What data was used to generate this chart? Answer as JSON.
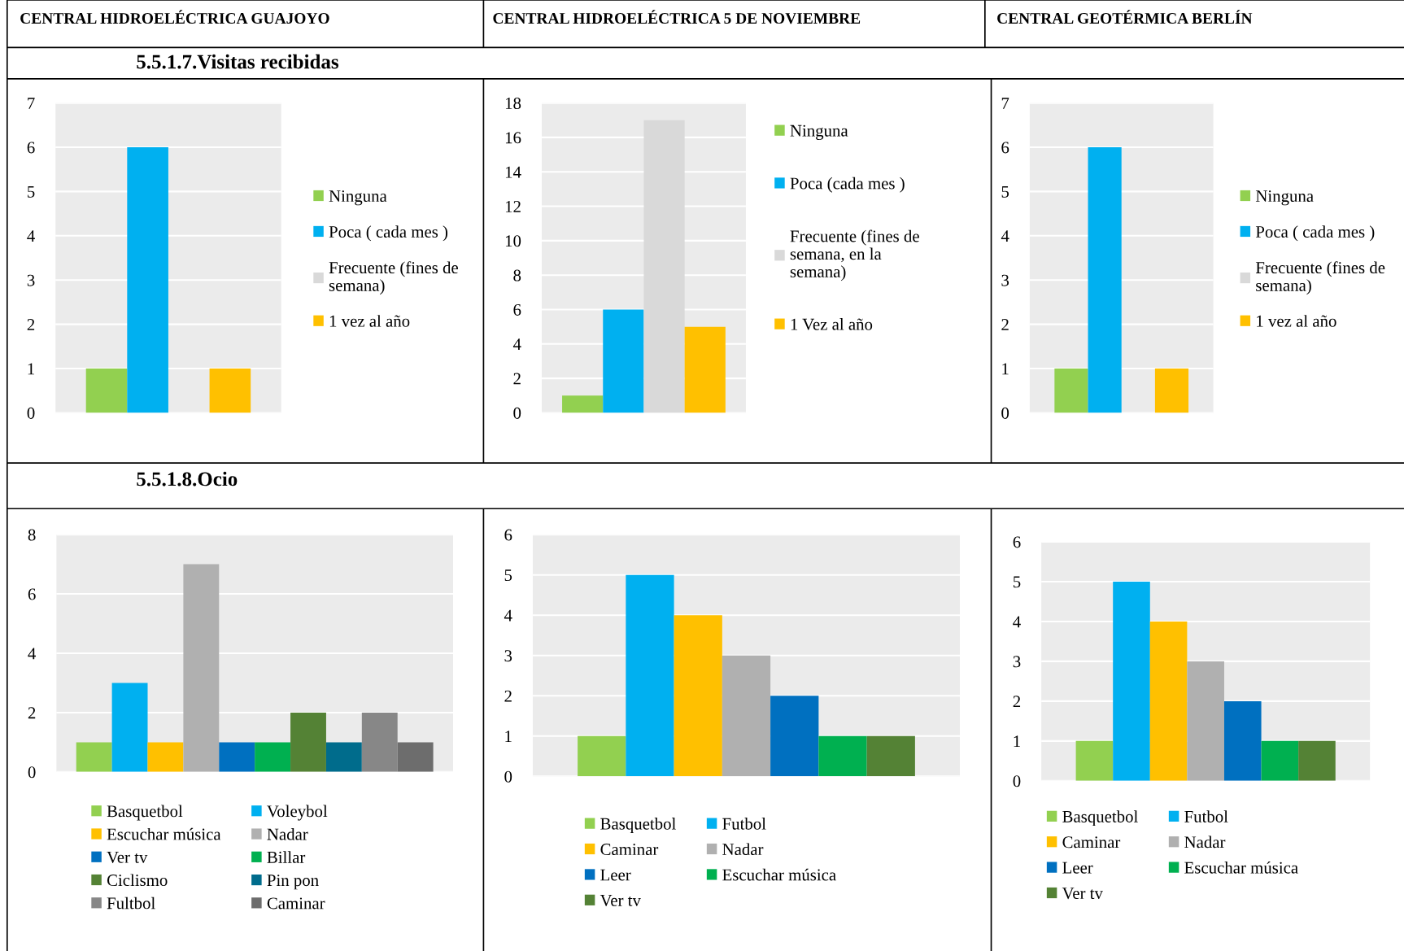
{
  "chart_data": [
    {
      "type": "bar",
      "title": "CENTRAL HIDROELÉCTRICA GUAJOYO",
      "subtitle": "5.5.1.7.Visitas recibidas",
      "categories": [
        null
      ],
      "ylim": [
        0,
        7
      ],
      "yticks": [
        0,
        1,
        2,
        3,
        4,
        5,
        6,
        7
      ],
      "grid": "y",
      "legend": "right",
      "series": [
        {
          "name": "Ninguna",
          "color": "#92d050",
          "values": [
            1
          ]
        },
        {
          "name": "Poca ( cada mes )",
          "color": "#00b0f0",
          "values": [
            6
          ]
        },
        {
          "name": "Frecuente (fines de\nsemana)",
          "color": "#d9d9d9",
          "values": [
            0
          ]
        },
        {
          "name": "1 vez al año",
          "color": "#ffc000",
          "values": [
            1
          ]
        }
      ]
    },
    {
      "type": "bar",
      "title": "CENTRAL HIDROELÉCTRICA 5 DE NOVIEMBRE",
      "categories": [
        null
      ],
      "ylim": [
        0,
        18
      ],
      "yticks": [
        0,
        2,
        4,
        6,
        8,
        10,
        12,
        14,
        16,
        18
      ],
      "grid": "y",
      "legend": "right",
      "series": [
        {
          "name": "Ninguna",
          "color": "#92d050",
          "values": [
            1
          ]
        },
        {
          "name": "Poca (cada mes )",
          "color": "#00b0f0",
          "values": [
            6
          ]
        },
        {
          "name": "Frecuente (fines de\nsemana, en la\nsemana)",
          "color": "#d9d9d9",
          "values": [
            17
          ]
        },
        {
          "name": "1 Vez al año",
          "color": "#ffc000",
          "values": [
            5
          ]
        }
      ]
    },
    {
      "type": "bar",
      "title": "CENTRAL GEOTÉRMICA BERLÍN",
      "categories": [
        null
      ],
      "ylim": [
        0,
        7
      ],
      "yticks": [
        0,
        1,
        2,
        3,
        4,
        5,
        6,
        7
      ],
      "grid": "y",
      "legend": "right",
      "series": [
        {
          "name": "Ninguna",
          "color": "#92d050",
          "values": [
            1
          ]
        },
        {
          "name": "Poca ( cada mes )",
          "color": "#00b0f0",
          "values": [
            6
          ]
        },
        {
          "name": "Frecuente (fines de\nsemana)",
          "color": "#d9d9d9",
          "values": [
            0
          ]
        },
        {
          "name": "1 vez al año",
          "color": "#ffc000",
          "values": [
            1
          ]
        }
      ]
    },
    {
      "type": "bar",
      "subtitle": "5.5.1.8.Ocio",
      "categories": [
        null
      ],
      "ylim": [
        0,
        8
      ],
      "yticks": [
        0,
        2,
        4,
        6,
        8
      ],
      "grid": "y",
      "legend": "bottom",
      "series": [
        {
          "name": "Basquetbol",
          "color": "#92d050",
          "values": [
            1
          ]
        },
        {
          "name": "Voleybol",
          "color": "#00b0f0",
          "values": [
            3
          ]
        },
        {
          "name": "Escuchar música",
          "color": "#ffc000",
          "values": [
            1
          ]
        },
        {
          "name": "Nadar",
          "color": "#b0b0b0",
          "values": [
            7
          ]
        },
        {
          "name": "Ver tv",
          "color": "#0070c0",
          "values": [
            1
          ]
        },
        {
          "name": "Billar",
          "color": "#00b050",
          "values": [
            1
          ]
        },
        {
          "name": "Ciclismo",
          "color": "#548235",
          "values": [
            2
          ]
        },
        {
          "name": "Pin pon",
          "color": "#006c8c",
          "values": [
            1
          ]
        },
        {
          "name": "Fultbol",
          "color": "#878787",
          "values": [
            2
          ]
        },
        {
          "name": "Caminar",
          "color": "#6d6d6d",
          "values": [
            1
          ]
        }
      ]
    },
    {
      "type": "bar",
      "categories": [
        null
      ],
      "ylim": [
        0,
        6
      ],
      "yticks": [
        0,
        1,
        2,
        3,
        4,
        5,
        6
      ],
      "grid": "y",
      "legend": "bottom",
      "series": [
        {
          "name": "Basquetbol",
          "color": "#92d050",
          "values": [
            1
          ]
        },
        {
          "name": "Futbol",
          "color": "#00b0f0",
          "values": [
            5
          ]
        },
        {
          "name": "Caminar",
          "color": "#ffc000",
          "values": [
            4
          ]
        },
        {
          "name": "Nadar",
          "color": "#b0b0b0",
          "values": [
            3
          ]
        },
        {
          "name": "Leer",
          "color": "#0070c0",
          "values": [
            2
          ]
        },
        {
          "name": "Escuchar música",
          "color": "#00b050",
          "values": [
            1
          ]
        },
        {
          "name": "Ver tv",
          "color": "#548235",
          "values": [
            1
          ]
        }
      ]
    },
    {
      "type": "bar",
      "categories": [
        null
      ],
      "ylim": [
        0,
        6
      ],
      "yticks": [
        0,
        1,
        2,
        3,
        4,
        5,
        6
      ],
      "grid": "y",
      "legend": "bottom",
      "series": [
        {
          "name": "Basquetbol",
          "color": "#92d050",
          "values": [
            1
          ]
        },
        {
          "name": "Futbol",
          "color": "#00b0f0",
          "values": [
            5
          ]
        },
        {
          "name": "Caminar",
          "color": "#ffc000",
          "values": [
            4
          ]
        },
        {
          "name": "Nadar",
          "color": "#b0b0b0",
          "values": [
            3
          ]
        },
        {
          "name": "Leer",
          "color": "#0070c0",
          "values": [
            2
          ]
        },
        {
          "name": "Escuchar música",
          "color": "#00b050",
          "values": [
            1
          ]
        },
        {
          "name": "Ver tv",
          "color": "#548235",
          "values": [
            1
          ]
        }
      ]
    }
  ]
}
